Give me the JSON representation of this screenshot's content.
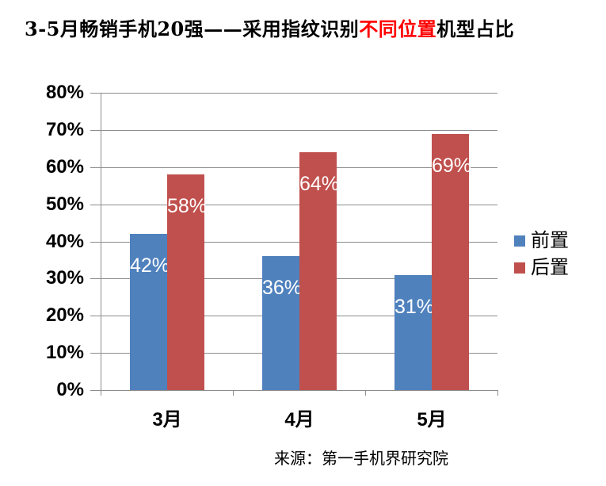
{
  "title": {
    "prefix": "3-5月畅销手机20强——采用指纹识别",
    "highlight": "不同位置",
    "suffix": "机型占比",
    "highlight_color": "#FF0000",
    "text_color": "#000000"
  },
  "source": "来源：第一手机界研究院",
  "chart_data": {
    "type": "bar",
    "categories": [
      "3月",
      "4月",
      "5月"
    ],
    "series": [
      {
        "name": "前置",
        "color": "#4F81BD",
        "values": [
          42,
          36,
          31
        ],
        "labels": [
          "42%",
          "36%",
          "31%"
        ]
      },
      {
        "name": "后置",
        "color": "#C0504D",
        "values": [
          58,
          64,
          69
        ],
        "labels": [
          "58%",
          "64%",
          "69%"
        ]
      }
    ],
    "y_axis": {
      "min": 0,
      "max": 80,
      "step": 10,
      "tick_labels": [
        "0%",
        "10%",
        "20%",
        "30%",
        "40%",
        "50%",
        "60%",
        "70%",
        "80%"
      ]
    },
    "grid": true,
    "legend_position": "right",
    "axis_color": "#8C8C8C",
    "data_label_color": "#FFFFFF"
  }
}
